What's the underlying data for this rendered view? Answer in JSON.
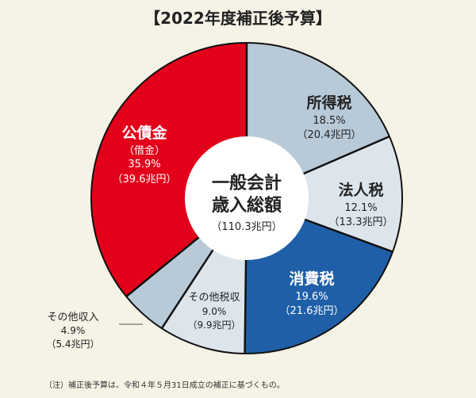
{
  "chart_data": {
    "type": "pie",
    "title": "【2022年度補正後予算】",
    "center_label": [
      "一般会計",
      "歳入総額"
    ],
    "center_total": "（110.3兆円）",
    "slices": [
      {
        "name": "所得税",
        "percent_text": "18.5%",
        "amount_text": "（20.4兆円）",
        "value": 18.5,
        "color": "#b8cad8"
      },
      {
        "name": "法人税",
        "percent_text": "12.1%",
        "amount_text": "（13.3兆円）",
        "value": 12.1,
        "color": "#dce5ec"
      },
      {
        "name": "消費税",
        "percent_text": "19.6%",
        "amount_text": "（21.6兆円）",
        "value": 19.6,
        "color": "#1f5fa8"
      },
      {
        "name": "その他税収",
        "percent_text": "9.0%",
        "amount_text": "（9.9兆円）",
        "value": 9.0,
        "color": "#dce5ec"
      },
      {
        "name": "その他収入",
        "percent_text": "4.9%",
        "amount_text": "（5.4兆円）",
        "value": 4.9,
        "color": "#b8cad8"
      },
      {
        "name": "公債金",
        "sub": "（借金）",
        "percent_text": "35.9%",
        "amount_text": "（39.6兆円）",
        "value": 35.9,
        "color": "#e2001a"
      }
    ],
    "note": "（注）補正後予算は、令和４年５月31日成立の補正に基づくもの。"
  }
}
